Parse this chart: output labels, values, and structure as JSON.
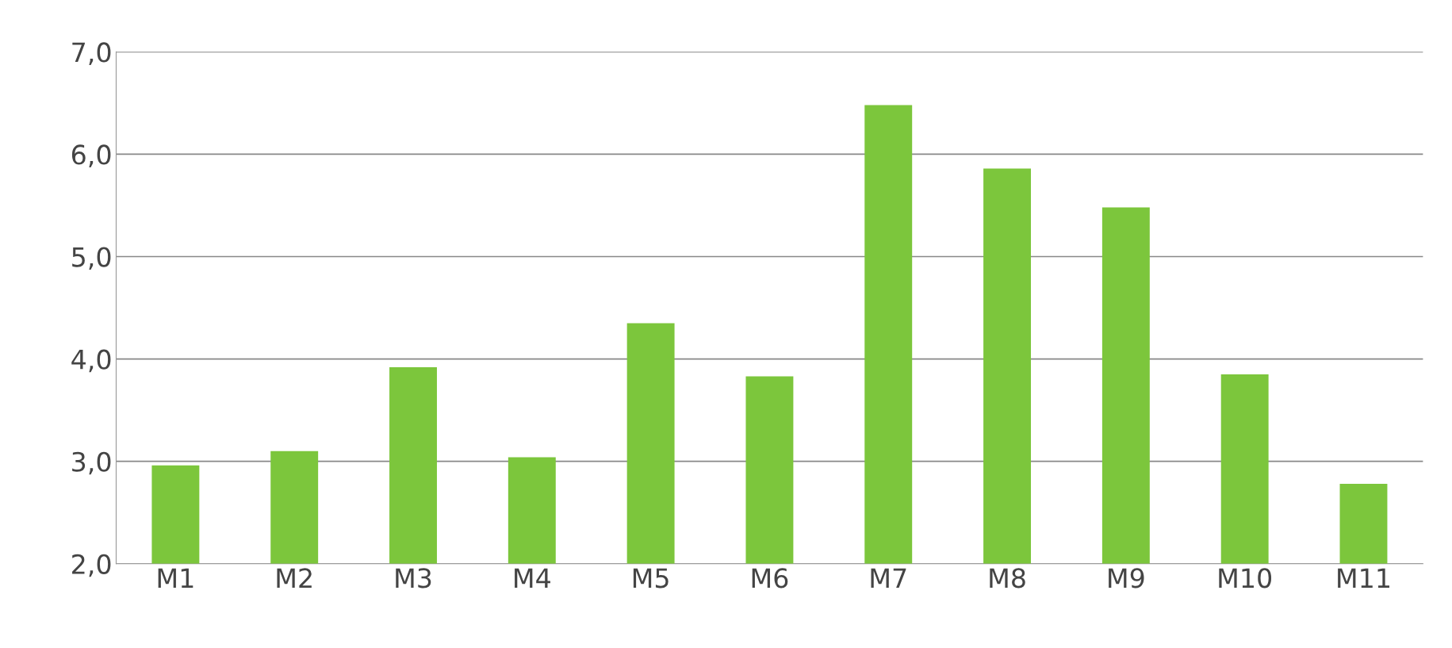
{
  "chart_data": {
    "type": "bar",
    "categories": [
      "M1",
      "M2",
      "M3",
      "M4",
      "M5",
      "M6",
      "M7",
      "M8",
      "M9",
      "M10",
      "M11"
    ],
    "values": [
      2.96,
      3.1,
      3.92,
      3.04,
      4.35,
      3.83,
      6.48,
      5.86,
      5.48,
      3.85,
      2.78
    ],
    "color": "#7cc63c",
    "ylim": [
      2.0,
      7.0
    ],
    "yticks": [
      {
        "value": 2.0,
        "label": "2,0"
      },
      {
        "value": 3.0,
        "label": "3,0"
      },
      {
        "value": 4.0,
        "label": "4,0"
      },
      {
        "value": 5.0,
        "label": "5,0"
      },
      {
        "value": 6.0,
        "label": "6,0"
      },
      {
        "value": 7.0,
        "label": "7,0"
      }
    ],
    "grid": "y"
  }
}
